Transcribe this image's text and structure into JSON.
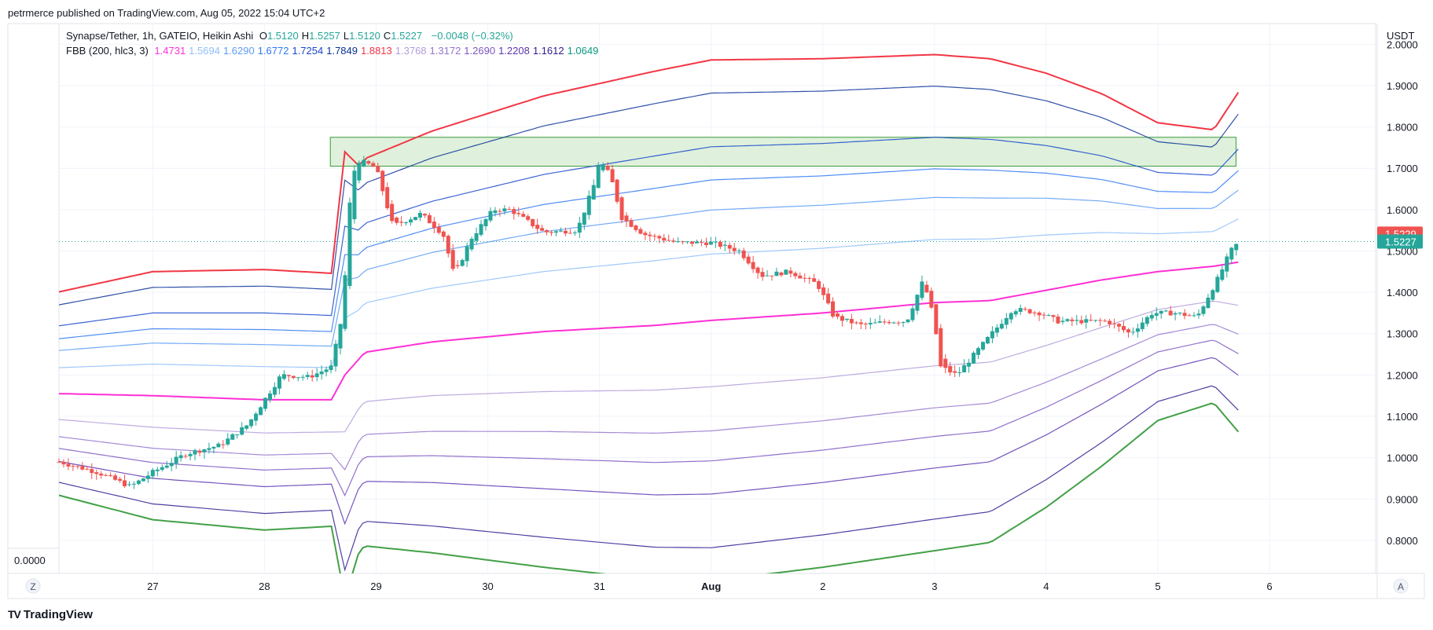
{
  "header": {
    "publisher": "petrmerce published on TradingView.com, Aug 05, 2022 15:04 UTC+2"
  },
  "legend": {
    "symbol": "Synapse/Tether, 1h, GATEIO, Heikin Ashi",
    "ohlc": [
      {
        "label": "O",
        "value": "1.5120"
      },
      {
        "label": "H",
        "value": "1.5257"
      },
      {
        "label": "L",
        "value": "1.5120"
      },
      {
        "label": "C",
        "value": "1.5227"
      }
    ],
    "change": "−0.0048 (−0.32%)",
    "indicator": "FBB (200, hlc3, 3)",
    "indicator_values": [
      {
        "value": "1.4731",
        "color": "#ff2fd5"
      },
      {
        "value": "1.5694",
        "color": "#90bff9"
      },
      {
        "value": "1.6290",
        "color": "#5b9cf6"
      },
      {
        "value": "1.6772",
        "color": "#3179f5"
      },
      {
        "value": "1.7254",
        "color": "#1848cc"
      },
      {
        "value": "1.7849",
        "color": "#0c3299"
      },
      {
        "value": "1.8813",
        "color": "#f23645"
      },
      {
        "value": "1.3768",
        "color": "#b39ddb"
      },
      {
        "value": "1.3172",
        "color": "#9575cd"
      },
      {
        "value": "1.2690",
        "color": "#7e57c2"
      },
      {
        "value": "1.2208",
        "color": "#5e35b1"
      },
      {
        "value": "1.1612",
        "color": "#311b92"
      },
      {
        "value": "1.0649",
        "color": "#089981"
      }
    ]
  },
  "footer": {
    "brand": "TradingView",
    "logo": "TV"
  },
  "colors": {
    "up": "#26a69a",
    "down": "#ef5350",
    "basis": "#ff40ff",
    "upper_outer": "#f23645",
    "lower_outer": "#43a047",
    "upper_band": "#3d5fc0",
    "lower_band": "#6a4fb8",
    "zone_fill": "#dff1dc",
    "zone_stroke": "#3a9a3a"
  },
  "chart_data": {
    "type": "candlestick",
    "title": "Synapse/Tether, 1h, GATEIO, Heikin Ashi",
    "y_axis_label": "USDT",
    "ylim": [
      0.72,
      2.05
    ],
    "y_ticks": [
      "2.0000",
      "1.9000",
      "1.8000",
      "1.7000",
      "1.6000",
      "1.5000",
      "1.4000",
      "1.3000",
      "1.2000",
      "1.1000",
      "1.0000",
      "0.9000",
      "0.8000"
    ],
    "x_ticks": [
      "27",
      "28",
      "29",
      "30",
      "31",
      "Aug",
      "2",
      "3",
      "4",
      "5",
      "6"
    ],
    "x_tick_days": [
      1,
      2,
      3,
      4,
      5,
      6,
      7,
      8,
      9,
      10,
      11
    ],
    "x_range_days": [
      0.16,
      11.95
    ],
    "current_price": {
      "value": 1.5227,
      "label": "1.5227"
    },
    "high_marker": {
      "value": 1.5229,
      "label": "1.5229"
    },
    "extra_axis_label": "0.0000",
    "left_axis_button": "Z",
    "auto_button": "A",
    "supply_zone": {
      "x0": 2.59,
      "x1": 10.7,
      "y0": 1.705,
      "y1": 1.775
    },
    "close_series": [
      [
        0.16,
        0.99
      ],
      [
        0.5,
        0.965
      ],
      [
        0.8,
        0.93
      ],
      [
        1.0,
        0.965
      ],
      [
        1.3,
        1.01
      ],
      [
        1.6,
        1.03
      ],
      [
        1.85,
        1.08
      ],
      [
        2.05,
        1.16
      ],
      [
        2.15,
        1.2
      ],
      [
        2.4,
        1.195
      ],
      [
        2.6,
        1.22
      ],
      [
        2.7,
        1.35
      ],
      [
        2.78,
        1.68
      ],
      [
        2.85,
        1.72
      ],
      [
        3.0,
        1.7
      ],
      [
        3.15,
        1.56
      ],
      [
        3.4,
        1.59
      ],
      [
        3.6,
        1.54
      ],
      [
        3.7,
        1.44
      ],
      [
        3.85,
        1.53
      ],
      [
        4.05,
        1.6
      ],
      [
        4.2,
        1.6
      ],
      [
        4.5,
        1.545
      ],
      [
        4.8,
        1.55
      ],
      [
        4.95,
        1.66
      ],
      [
        5.0,
        1.72
      ],
      [
        5.1,
        1.68
      ],
      [
        5.2,
        1.58
      ],
      [
        5.4,
        1.54
      ],
      [
        5.7,
        1.52
      ],
      [
        6.0,
        1.52
      ],
      [
        6.25,
        1.5
      ],
      [
        6.45,
        1.44
      ],
      [
        6.7,
        1.45
      ],
      [
        6.95,
        1.42
      ],
      [
        7.1,
        1.34
      ],
      [
        7.35,
        1.32
      ],
      [
        7.6,
        1.33
      ],
      [
        7.75,
        1.33
      ],
      [
        7.9,
        1.43
      ],
      [
        8.0,
        1.33
      ],
      [
        8.05,
        1.22
      ],
      [
        8.2,
        1.2
      ],
      [
        8.45,
        1.28
      ],
      [
        8.7,
        1.36
      ],
      [
        8.95,
        1.35
      ],
      [
        9.1,
        1.33
      ],
      [
        9.3,
        1.33
      ],
      [
        9.55,
        1.33
      ],
      [
        9.75,
        1.3
      ],
      [
        9.95,
        1.35
      ],
      [
        10.15,
        1.35
      ],
      [
        10.35,
        1.34
      ],
      [
        10.55,
        1.44
      ],
      [
        10.65,
        1.5
      ],
      [
        10.72,
        1.52
      ]
    ],
    "series": [
      {
        "name": "1.8813",
        "color": "#f23645",
        "level": 3
      },
      {
        "name": "1.7849",
        "color": "#0c3299",
        "level": 2.618
      },
      {
        "name": "1.7254",
        "color": "#1848cc",
        "level": 2.0
      },
      {
        "name": "1.6772",
        "color": "#3179f5",
        "level": 1.618
      },
      {
        "name": "1.6290",
        "color": "#5b9cf6",
        "level": 1.272
      },
      {
        "name": "1.5694",
        "color": "#90bff9",
        "level": 0.764
      },
      {
        "name": "1.4731",
        "color": "#ff2fd5",
        "level": 0
      },
      {
        "name": "1.3768",
        "color": "#b39ddb",
        "level": -0.764
      },
      {
        "name": "1.3172",
        "color": "#9575cd",
        "level": -1.272
      },
      {
        "name": "1.2690",
        "color": "#7e57c2",
        "level": -1.618
      },
      {
        "name": "1.2208",
        "color": "#5e35b1",
        "level": -2.0
      },
      {
        "name": "1.1612",
        "color": "#311b92",
        "level": -2.618
      },
      {
        "name": "1.0649",
        "color": "#43a047",
        "level": -3
      }
    ],
    "basis": [
      [
        0.16,
        1.155
      ],
      [
        1.0,
        1.15
      ],
      [
        2.0,
        1.14
      ],
      [
        2.6,
        1.14
      ],
      [
        2.72,
        1.2
      ],
      [
        2.9,
        1.255
      ],
      [
        3.5,
        1.28
      ],
      [
        4.5,
        1.305
      ],
      [
        5.5,
        1.32
      ],
      [
        6.0,
        1.332
      ],
      [
        7.0,
        1.35
      ],
      [
        8.0,
        1.375
      ],
      [
        8.5,
        1.38
      ],
      [
        9.0,
        1.405
      ],
      [
        9.5,
        1.43
      ],
      [
        10.0,
        1.45
      ],
      [
        10.5,
        1.463
      ],
      [
        10.72,
        1.473
      ]
    ],
    "band_width_unit": [
      [
        0.16,
        0.082
      ],
      [
        1.0,
        0.1
      ],
      [
        2.0,
        0.105
      ],
      [
        2.6,
        0.102
      ],
      [
        2.72,
        0.18
      ],
      [
        2.85,
        0.155
      ],
      [
        3.5,
        0.17
      ],
      [
        4.5,
        0.19
      ],
      [
        5.5,
        0.205
      ],
      [
        6.0,
        0.21
      ],
      [
        7.0,
        0.205
      ],
      [
        8.0,
        0.2
      ],
      [
        8.5,
        0.195
      ],
      [
        9.0,
        0.175
      ],
      [
        9.5,
        0.15
      ],
      [
        10.0,
        0.12
      ],
      [
        10.5,
        0.11
      ],
      [
        10.72,
        0.1368
      ]
    ]
  }
}
